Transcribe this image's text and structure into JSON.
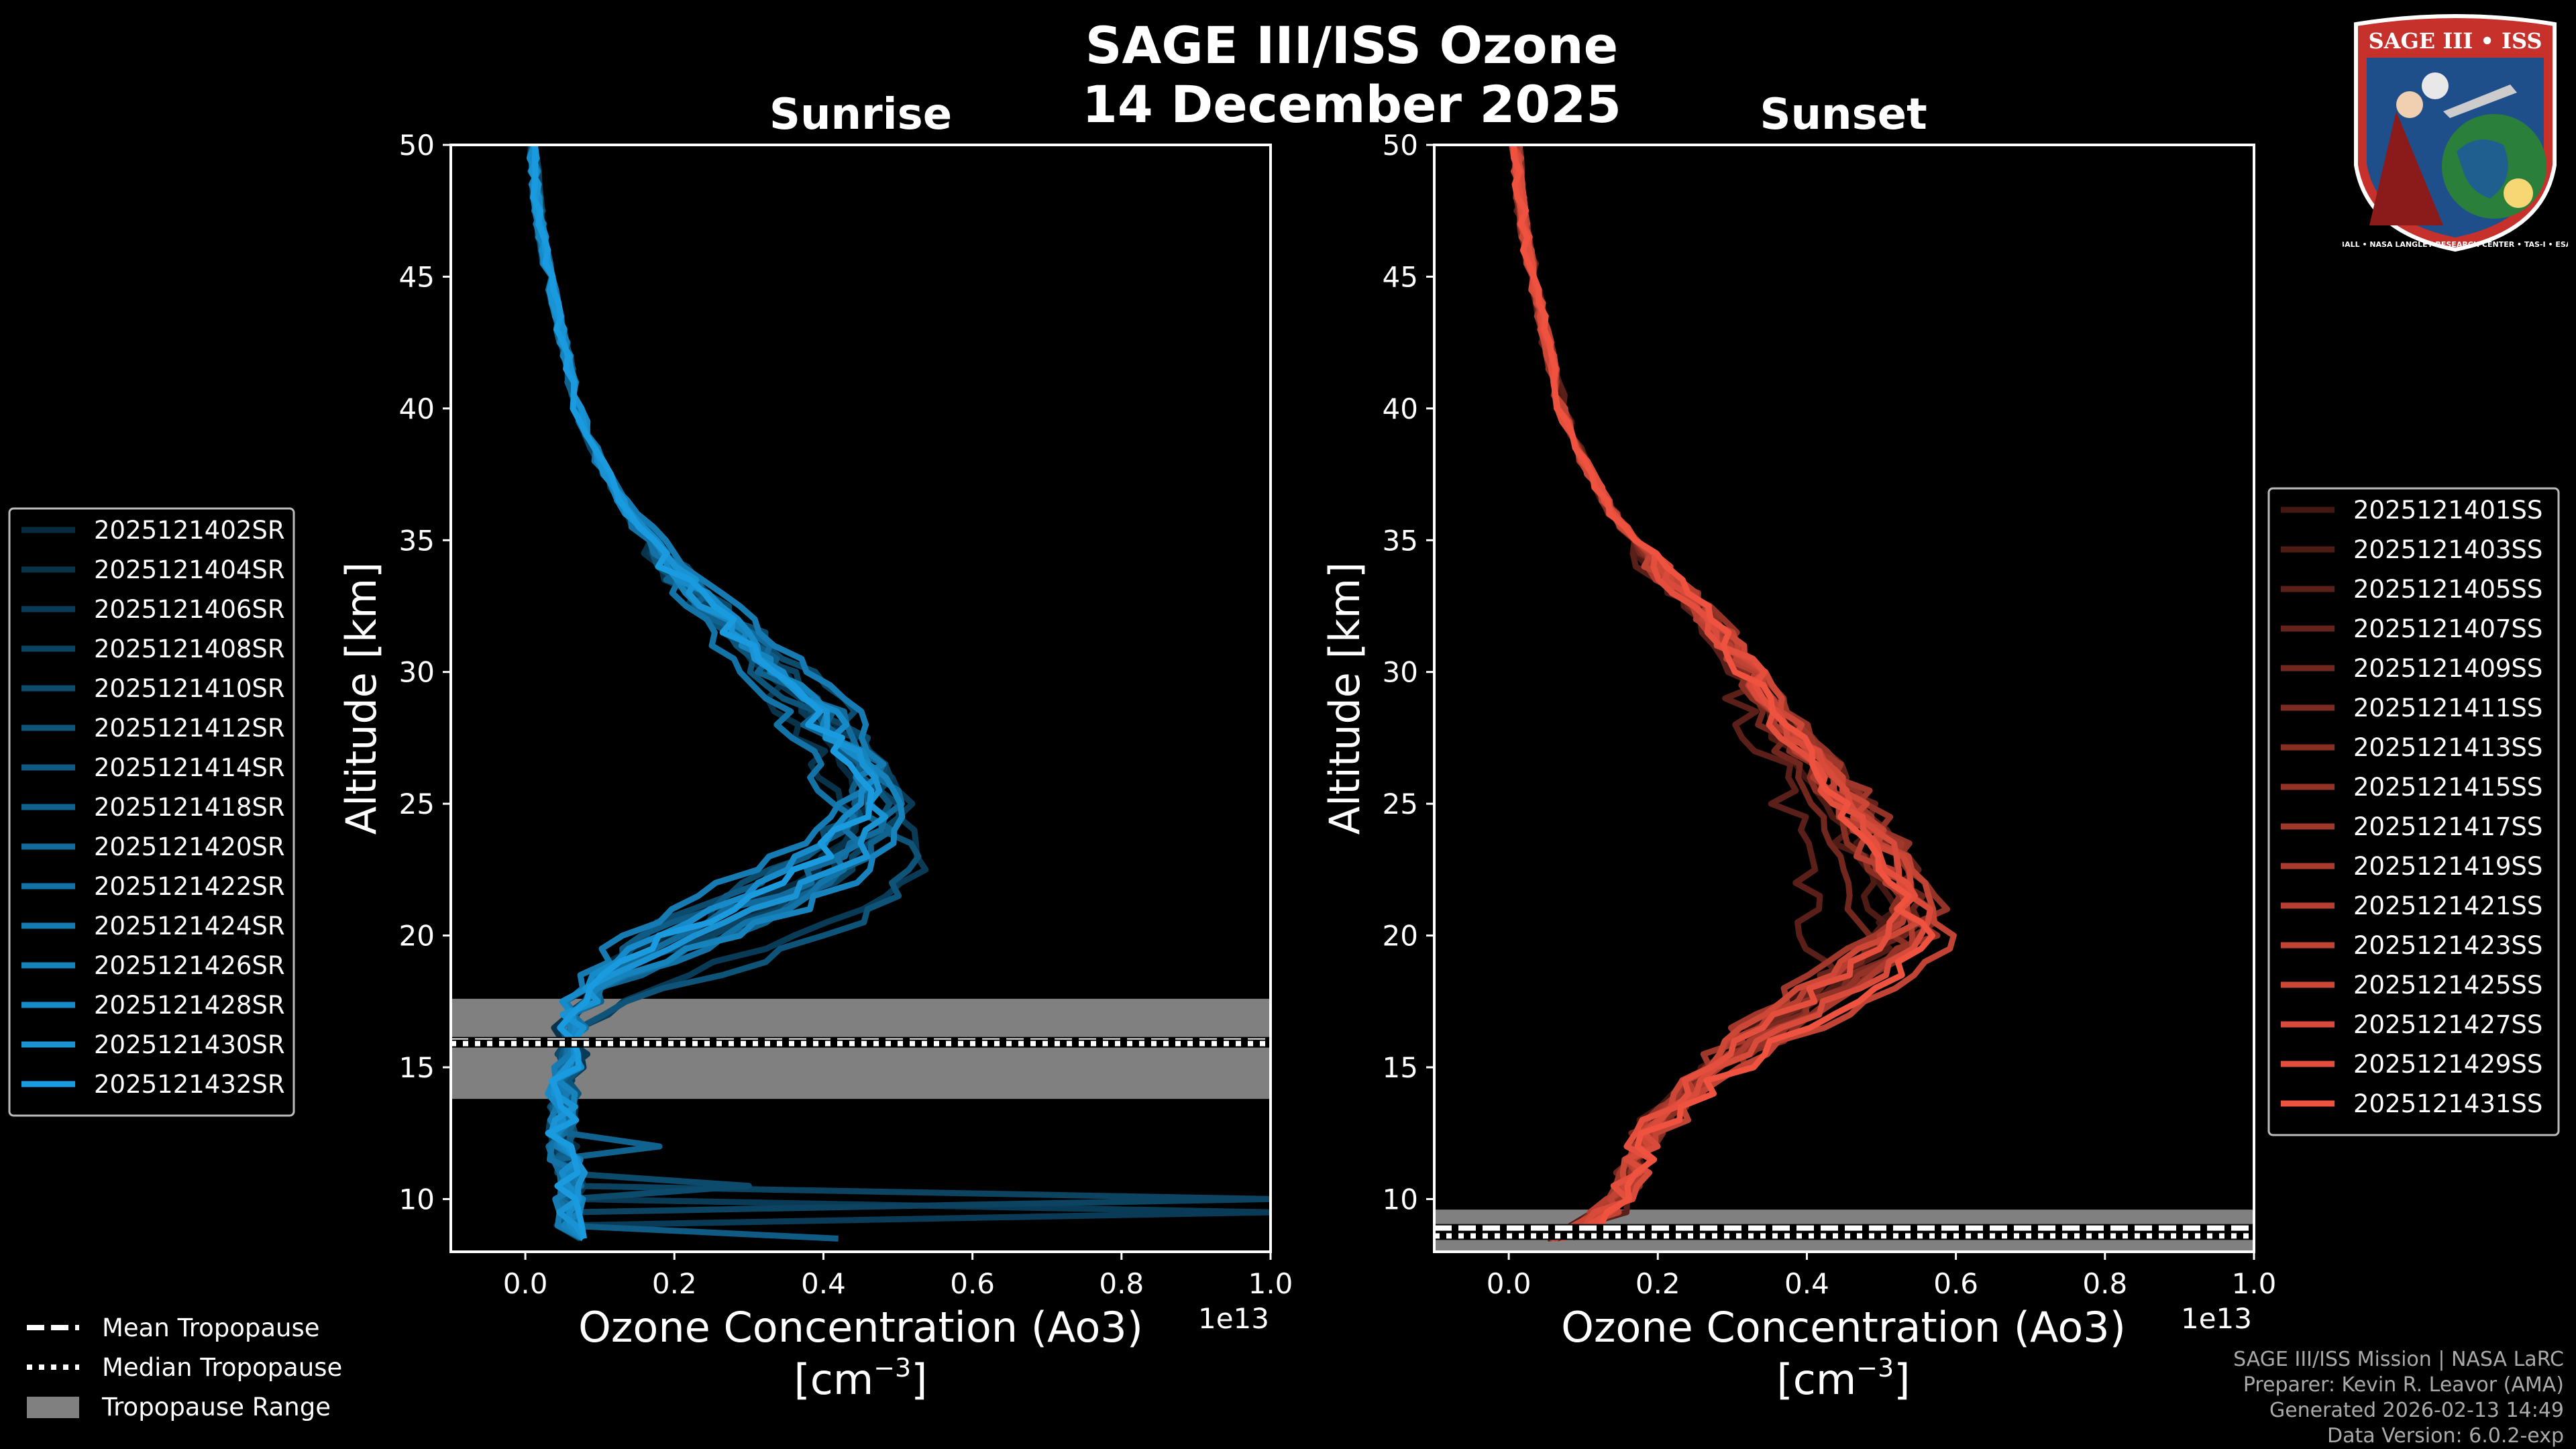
{
  "figure": {
    "title_line1": "SAGE III/ISS Ozone",
    "title_line2": "14 December 2025",
    "credits": [
      "SAGE III/ISS Mission | NASA LaRC",
      "Preparer: Kevin R. Leavor (AMA)",
      "Generated 2026-02-13 14:49",
      "Data Version: 6.0.2-exp"
    ],
    "logo": {
      "title": "SAGE III • ISS",
      "ring_text": "BALL • NASA LANGLEY RESEARCH CENTER • TAS-I • ESA"
    }
  },
  "colors": {
    "background": "#000000",
    "sunrise_base": "#1a9be0",
    "sunset_base": "#ef5340",
    "tropopause_band": "#808080"
  },
  "chart_data": [
    {
      "type": "line",
      "panel": "sunrise",
      "title": "Sunrise",
      "xlabel": "Ozone Concentration (Ao3)",
      "xlabel_units": "[cm",
      "xlabel_units_exp": "−3",
      "xlabel_units_close": "]",
      "ylabel": "Altitude [km]",
      "x_offset_label": "1e13",
      "xlim": [
        -0.1,
        1.0
      ],
      "ylim": [
        8,
        50
      ],
      "xticks": [
        0.0,
        0.2,
        0.4,
        0.6,
        0.8,
        1.0
      ],
      "xtick_labels": [
        "0.0",
        "0.2",
        "0.4",
        "0.6",
        "0.8",
        "1.0"
      ],
      "yticks": [
        10,
        15,
        20,
        25,
        30,
        35,
        40,
        45,
        50
      ],
      "ytick_labels": [
        "10",
        "15",
        "20",
        "25",
        "30",
        "35",
        "40",
        "45",
        "50"
      ],
      "tropopause": {
        "mean": 16.0,
        "median": 15.9,
        "range": [
          13.8,
          17.6
        ]
      },
      "profile_template": {
        "altitude": [
          50,
          48,
          46,
          44,
          42,
          40,
          38,
          36,
          34,
          32,
          30,
          28,
          26,
          25,
          24,
          23,
          22,
          21,
          20,
          19,
          18,
          17,
          16,
          15,
          14,
          13,
          12,
          11,
          10,
          9,
          8.5
        ],
        "ozone": [
          0.01,
          0.015,
          0.025,
          0.04,
          0.055,
          0.07,
          0.1,
          0.14,
          0.2,
          0.27,
          0.35,
          0.42,
          0.47,
          0.48,
          0.46,
          0.42,
          0.36,
          0.28,
          0.2,
          0.13,
          0.09,
          0.06,
          0.06,
          0.06,
          0.05,
          0.05,
          0.05,
          0.06,
          0.06,
          0.06,
          0.07
        ]
      },
      "series": [
        {
          "name": "2025121402SR",
          "peak": 0.46,
          "peak_alt": 25.0,
          "noise": 0.02
        },
        {
          "name": "2025121404SR",
          "peak": 0.44,
          "peak_alt": 24.0,
          "noise": 0.02
        },
        {
          "name": "2025121406SR",
          "peak": 0.54,
          "peak_alt": 23.0,
          "noise": 0.02,
          "spike": {
            "alt": 9.5,
            "value": 1.0
          }
        },
        {
          "name": "2025121408SR",
          "peak": 0.5,
          "peak_alt": 24.5,
          "noise": 0.02,
          "spike": {
            "alt": 9.8,
            "value": 1.0
          }
        },
        {
          "name": "2025121410SR",
          "peak": 0.47,
          "peak_alt": 26.0,
          "noise": 0.02,
          "spike": {
            "alt": 10.5,
            "value": 0.3
          }
        },
        {
          "name": "2025121412SR",
          "peak": 0.52,
          "peak_alt": 22.5,
          "noise": 0.02
        },
        {
          "name": "2025121414SR",
          "peak": 0.45,
          "peak_alt": 25.5,
          "noise": 0.02,
          "spike": {
            "alt": 8.3,
            "value": 0.42
          }
        },
        {
          "name": "2025121418SR",
          "peak": 0.48,
          "peak_alt": 24.0,
          "noise": 0.02,
          "spike": {
            "alt": 12.0,
            "value": 0.18
          }
        },
        {
          "name": "2025121420SR",
          "peak": 0.49,
          "peak_alt": 25.0,
          "noise": 0.02
        },
        {
          "name": "2025121422SR",
          "peak": 0.43,
          "peak_alt": 23.5,
          "noise": 0.02
        },
        {
          "name": "2025121424SR",
          "peak": 0.47,
          "peak_alt": 26.5,
          "noise": 0.02
        },
        {
          "name": "2025121426SR",
          "peak": 0.5,
          "peak_alt": 24.0,
          "noise": 0.02
        },
        {
          "name": "2025121428SR",
          "peak": 0.46,
          "peak_alt": 25.5,
          "noise": 0.02
        },
        {
          "name": "2025121430SR",
          "peak": 0.48,
          "peak_alt": 24.5,
          "noise": 0.02
        },
        {
          "name": "2025121432SR",
          "peak": 0.45,
          "peak_alt": 25.0,
          "noise": 0.02
        }
      ]
    },
    {
      "type": "line",
      "panel": "sunset",
      "title": "Sunset",
      "xlabel": "Ozone Concentration (Ao3)",
      "xlabel_units": "[cm",
      "xlabel_units_exp": "−3",
      "xlabel_units_close": "]",
      "ylabel": "Altitude [km]",
      "x_offset_label": "1e13",
      "xlim": [
        -0.1,
        1.0
      ],
      "ylim": [
        8,
        50
      ],
      "xticks": [
        0.0,
        0.2,
        0.4,
        0.6,
        0.8,
        1.0
      ],
      "xtick_labels": [
        "0.0",
        "0.2",
        "0.4",
        "0.6",
        "0.8",
        "1.0"
      ],
      "yticks": [
        10,
        15,
        20,
        25,
        30,
        35,
        40,
        45,
        50
      ],
      "ytick_labels": [
        "10",
        "15",
        "20",
        "25",
        "30",
        "35",
        "40",
        "45",
        "50"
      ],
      "tropopause": {
        "mean": 8.9,
        "median": 8.6,
        "range": [
          8.0,
          9.6
        ]
      },
      "profile_template": {
        "altitude": [
          50,
          48,
          46,
          44,
          42,
          40,
          38,
          36,
          34,
          32,
          30,
          28,
          26,
          24,
          23,
          22,
          21,
          20,
          19,
          18,
          17,
          16,
          15,
          14,
          13,
          12,
          11,
          10,
          9,
          8.5
        ],
        "ozone": [
          0.01,
          0.015,
          0.025,
          0.04,
          0.055,
          0.07,
          0.1,
          0.14,
          0.2,
          0.27,
          0.33,
          0.38,
          0.44,
          0.5,
          0.52,
          0.55,
          0.56,
          0.55,
          0.5,
          0.44,
          0.38,
          0.33,
          0.28,
          0.24,
          0.2,
          0.18,
          0.17,
          0.15,
          0.1,
          0.05
        ]
      },
      "series": [
        {
          "name": "2025121401SS",
          "peak": 0.52,
          "peak_alt": 21.0,
          "noise": 0.02
        },
        {
          "name": "2025121403SS",
          "peak": 0.5,
          "peak_alt": 20.5,
          "noise": 0.02
        },
        {
          "name": "2025121405SS",
          "peak": 0.42,
          "peak_alt": 19.0,
          "noise": 0.03
        },
        {
          "name": "2025121407SS",
          "peak": 0.55,
          "peak_alt": 21.5,
          "noise": 0.02
        },
        {
          "name": "2025121409SS",
          "peak": 0.48,
          "peak_alt": 20.0,
          "noise": 0.02
        },
        {
          "name": "2025121411SS",
          "peak": 0.56,
          "peak_alt": 21.0,
          "noise": 0.02
        },
        {
          "name": "2025121413SS",
          "peak": 0.53,
          "peak_alt": 20.0,
          "noise": 0.02
        },
        {
          "name": "2025121415SS",
          "peak": 0.57,
          "peak_alt": 21.0,
          "noise": 0.02
        },
        {
          "name": "2025121417SS",
          "peak": 0.54,
          "peak_alt": 22.0,
          "noise": 0.02
        },
        {
          "name": "2025121419SS",
          "peak": 0.55,
          "peak_alt": 20.5,
          "noise": 0.02
        },
        {
          "name": "2025121421SS",
          "peak": 0.52,
          "peak_alt": 21.0,
          "noise": 0.02
        },
        {
          "name": "2025121423SS",
          "peak": 0.58,
          "peak_alt": 20.0,
          "noise": 0.02
        },
        {
          "name": "2025121425SS",
          "peak": 0.54,
          "peak_alt": 21.5,
          "noise": 0.02
        },
        {
          "name": "2025121427SS",
          "peak": 0.56,
          "peak_alt": 20.5,
          "noise": 0.02
        },
        {
          "name": "2025121429SS",
          "peak": 0.53,
          "peak_alt": 21.0,
          "noise": 0.02
        },
        {
          "name": "2025121431SS",
          "peak": 0.55,
          "peak_alt": 20.0,
          "noise": 0.02
        }
      ]
    }
  ],
  "tropopause_legend": {
    "mean": "Mean Tropopause",
    "median": "Median Tropopause",
    "range": "Tropopause Range"
  }
}
